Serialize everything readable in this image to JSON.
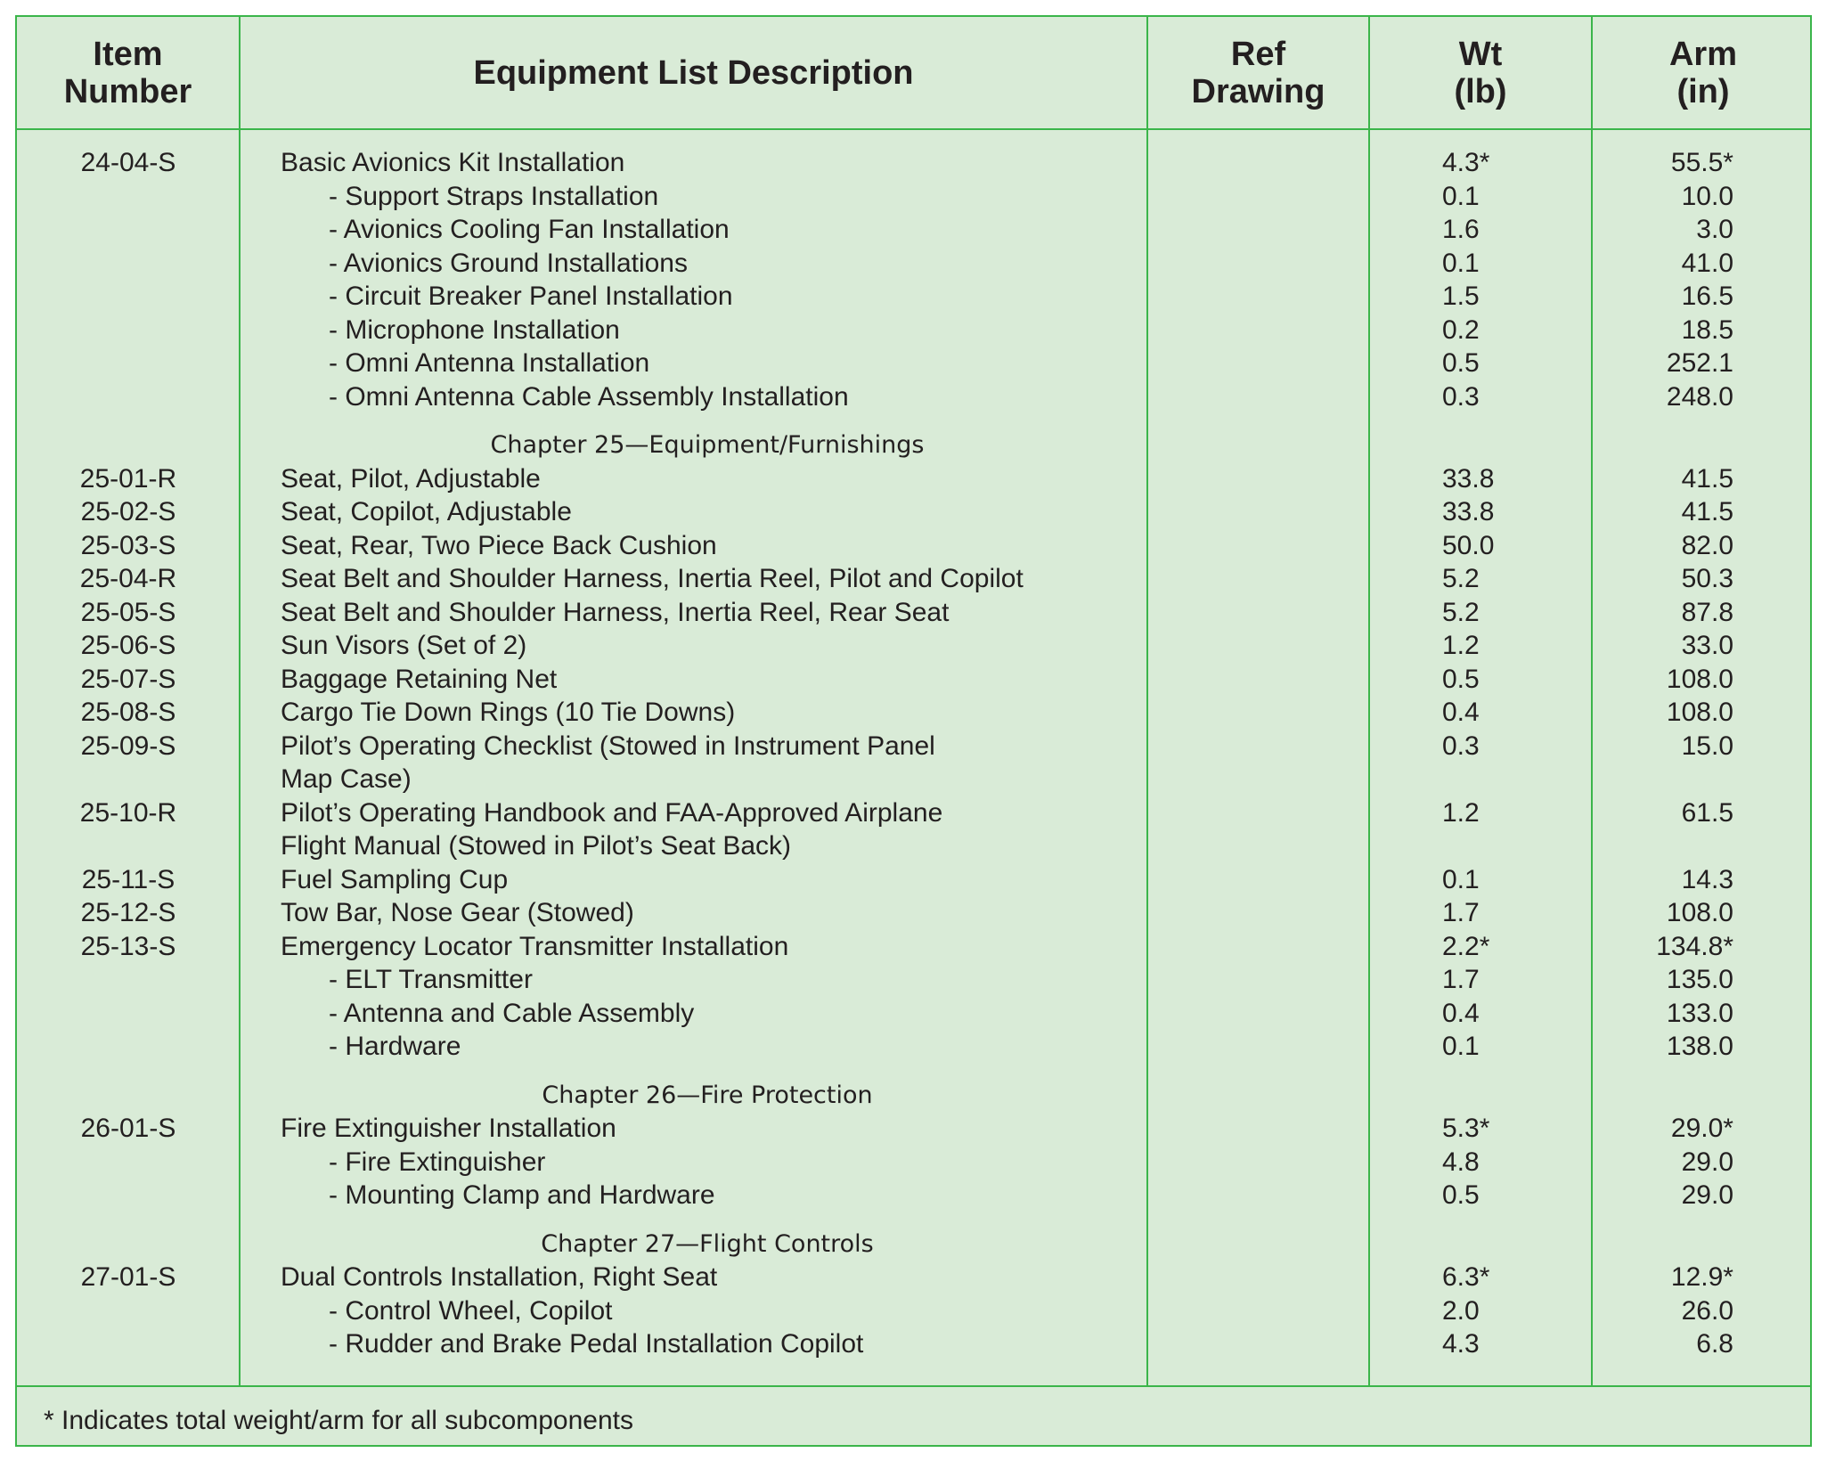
{
  "headers": {
    "item": "Item\nNumber",
    "desc": "Equipment List Description",
    "ref": "Ref\nDrawing",
    "wt": "Wt\n(lb)",
    "arm": "Arm\n(in)"
  },
  "rows": [
    {
      "item": "24-04-S",
      "desc": "Basic Avionics Kit Installation",
      "wt": "4.3*",
      "arm": "55.5*"
    },
    {
      "item": "",
      "desc": "- Support Straps Installation",
      "wt": "0.1",
      "arm": "10.0",
      "sub": true
    },
    {
      "item": "",
      "desc": "- Avionics Cooling Fan Installation",
      "wt": "1.6",
      "arm": "3.0",
      "sub": true
    },
    {
      "item": "",
      "desc": "- Avionics Ground Installations",
      "wt": "0.1",
      "arm": "41.0",
      "sub": true
    },
    {
      "item": "",
      "desc": "- Circuit Breaker Panel Installation",
      "wt": "1.5",
      "arm": "16.5",
      "sub": true
    },
    {
      "item": "",
      "desc": "- Microphone Installation",
      "wt": "0.2",
      "arm": "18.5",
      "sub": true
    },
    {
      "item": "",
      "desc": "- Omni Antenna Installation",
      "wt": "0.5",
      "arm": "252.1",
      "sub": true
    },
    {
      "item": "",
      "desc": "- Omni Antenna Cable Assembly Installation",
      "wt": "0.3",
      "arm": "248.0",
      "sub": true
    },
    {
      "chapter": "Chapter 25—Equipment/Furnishings"
    },
    {
      "item": "25-01-R",
      "desc": "Seat, Pilot, Adjustable",
      "wt": "33.8",
      "arm": "41.5"
    },
    {
      "item": "25-02-S",
      "desc": "Seat, Copilot, Adjustable",
      "wt": "33.8",
      "arm": "41.5"
    },
    {
      "item": "25-03-S",
      "desc": "Seat, Rear, Two Piece Back Cushion",
      "wt": "50.0",
      "arm": "82.0"
    },
    {
      "item": "25-04-R",
      "desc": "Seat Belt and Shoulder Harness, Inertia Reel, Pilot and Copilot",
      "wt": "5.2",
      "arm": "50.3"
    },
    {
      "item": "25-05-S",
      "desc": "Seat Belt and Shoulder Harness, Inertia Reel, Rear Seat",
      "wt": "5.2",
      "arm": "87.8"
    },
    {
      "item": "25-06-S",
      "desc": "Sun Visors (Set of 2)",
      "wt": "1.2",
      "arm": "33.0"
    },
    {
      "item": "25-07-S",
      "desc": "Baggage Retaining Net",
      "wt": "0.5",
      "arm": "108.0"
    },
    {
      "item": "25-08-S",
      "desc": "Cargo Tie Down Rings (10 Tie Downs)",
      "wt": "0.4",
      "arm": "108.0"
    },
    {
      "item": "25-09-S",
      "desc": "Pilot’s Operating Checklist (Stowed in Instrument Panel",
      "wt": "0.3",
      "arm": "15.0"
    },
    {
      "item": "",
      "desc": "Map Case)",
      "wt": "",
      "arm": ""
    },
    {
      "item": "25-10-R",
      "desc": "Pilot’s Operating Handbook and FAA-Approved Airplane",
      "wt": "1.2",
      "arm": "61.5"
    },
    {
      "item": "",
      "desc": "Flight Manual (Stowed in Pilot’s Seat Back)",
      "wt": "",
      "arm": ""
    },
    {
      "item": "25-11-S",
      "desc": "Fuel Sampling Cup",
      "wt": "0.1",
      "arm": "14.3"
    },
    {
      "item": "25-12-S",
      "desc": "Tow Bar, Nose Gear (Stowed)",
      "wt": "1.7",
      "arm": "108.0"
    },
    {
      "item": "25-13-S",
      "desc": "Emergency Locator Transmitter Installation",
      "wt": "2.2*",
      "arm": "134.8*"
    },
    {
      "item": "",
      "desc": "- ELT Transmitter",
      "wt": "1.7",
      "arm": "135.0",
      "sub": true
    },
    {
      "item": "",
      "desc": "- Antenna and Cable Assembly",
      "wt": "0.4",
      "arm": "133.0",
      "sub": true
    },
    {
      "item": "",
      "desc": "- Hardware",
      "wt": "0.1",
      "arm": "138.0",
      "sub": true
    },
    {
      "chapter": "Chapter 26—Fire Protection"
    },
    {
      "item": "26-01-S",
      "desc": "Fire Extinguisher Installation",
      "wt": "5.3*",
      "arm": "29.0*"
    },
    {
      "item": "",
      "desc": "- Fire Extinguisher",
      "wt": "4.8",
      "arm": "29.0",
      "sub": true
    },
    {
      "item": "",
      "desc": "- Mounting Clamp and Hardware",
      "wt": "0.5",
      "arm": "29.0",
      "sub": true
    },
    {
      "chapter": "Chapter 27—Flight Controls"
    },
    {
      "item": "27-01-S",
      "desc": "Dual Controls Installation, Right Seat",
      "wt": "6.3*",
      "arm": "12.9*"
    },
    {
      "item": "",
      "desc": "- Control Wheel, Copilot",
      "wt": "2.0",
      "arm": "26.0",
      "sub": true
    },
    {
      "item": "",
      "desc": "- Rudder and Brake Pedal Installation Copilot",
      "wt": "4.3",
      "arm": "6.8",
      "sub": true
    }
  ],
  "footnote": "* Indicates total weight/arm for all subcomponents",
  "colors": {
    "border": "#3bb54a",
    "background": "#d9ebd7",
    "text": "#231f20"
  }
}
